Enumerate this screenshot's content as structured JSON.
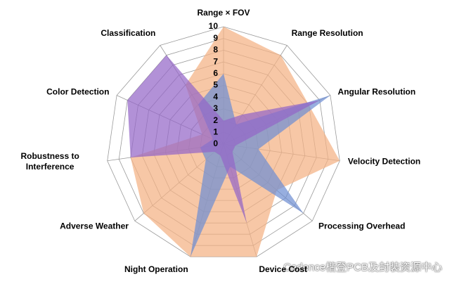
{
  "chart_data": {
    "type": "radar",
    "categories": [
      "Range × FOV",
      "Range Resolution",
      "Angular Resolution",
      "Velocity Detection",
      "Processing Overhead",
      "Device Cost",
      "Night Operation",
      "Adverse Weather",
      "Robustness to Interference",
      "Color Detection",
      "Classification"
    ],
    "series": [
      {
        "color": "#f4b183",
        "values": [
          10,
          9,
          8,
          10,
          6,
          10,
          10,
          9,
          8,
          2,
          6
        ]
      },
      {
        "color": "#6f8fd2",
        "values": [
          6,
          2,
          10,
          3,
          9,
          2,
          10,
          2,
          2,
          1,
          4
        ]
      },
      {
        "color": "#9466c8",
        "values": [
          2,
          3,
          9,
          1,
          1,
          7,
          1,
          1,
          8,
          9,
          9
        ]
      }
    ],
    "ylim": [
      0,
      10
    ],
    "yticks": [
      0,
      1,
      2,
      3,
      4,
      5,
      6,
      7,
      8,
      9,
      10
    ],
    "grid": true,
    "watermark": "Cadence楷登PCB及封装资源中心"
  }
}
